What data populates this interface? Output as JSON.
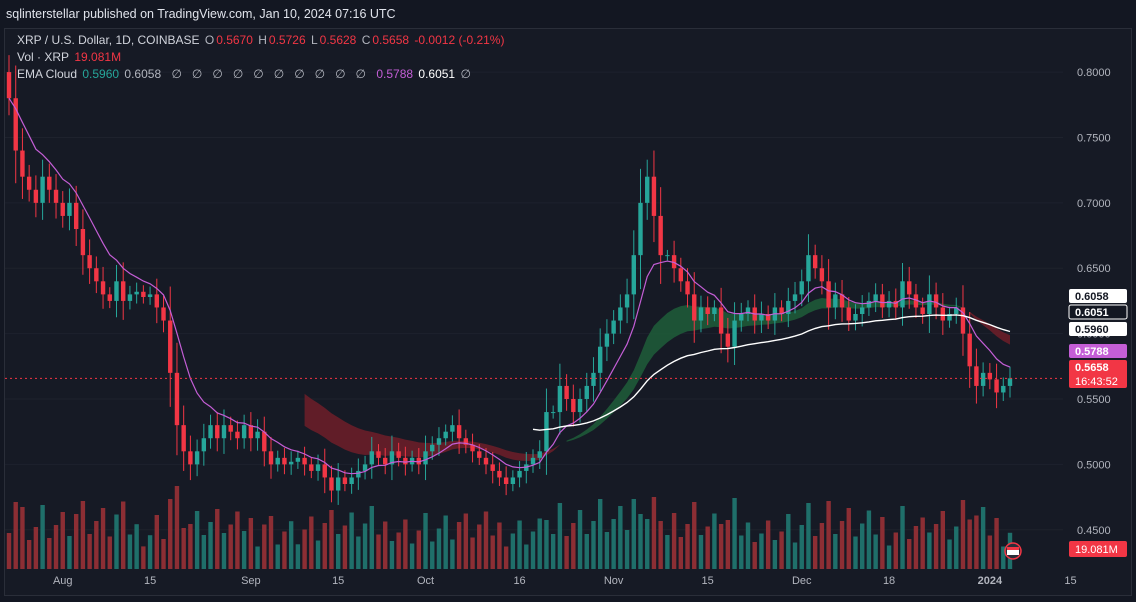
{
  "header": {
    "published": "sqlinterstellar published on TradingView.com, Jan 10, 2024 07:16 UTC"
  },
  "legend": {
    "symbol": "XRP / U.S. Dollar, 1D, COINBASE",
    "o_label": "O",
    "o": "0.5670",
    "h_label": "H",
    "h": "0.5726",
    "l_label": "L",
    "l": "0.5628",
    "c_label": "C",
    "c": "0.5658",
    "change": "-0.0012 (-0.21%)",
    "vol_label": "Vol · XRP",
    "vol": "19.081M",
    "ema_label": "EMA Cloud",
    "ema_a": "0.5960",
    "ema_b": "0.6058",
    "ema_nulls": [
      "∅",
      "∅",
      "∅",
      "∅",
      "∅",
      "∅",
      "∅",
      "∅",
      "∅",
      "∅"
    ],
    "ema_c": "0.5788",
    "ema_d": "0.6051",
    "ema_tail": "∅"
  },
  "colors": {
    "up": "#26a69a",
    "down": "#f23645",
    "vol_up": "#1f6f6a",
    "vol_down": "#8c2e34",
    "ema_purple": "#c45ed6",
    "ema_white": "#ffffff",
    "cloud_bull": "#1e5e3a",
    "cloud_bear": "#6e1f29",
    "bg": "#161a25",
    "grid": "#1e222d"
  },
  "chart_data": {
    "type": "candlestick",
    "symbol": "XRP / U.S. Dollar",
    "interval": "1D",
    "exchange": "COINBASE",
    "ylim": [
      0.42,
      0.81
    ],
    "y_ticks": [
      "0.8000",
      "0.7500",
      "0.7000",
      "0.6500",
      "0.6000",
      "0.5500",
      "0.5000",
      "0.4500"
    ],
    "x_ticks": [
      "Aug",
      "15",
      "Sep",
      "15",
      "Oct",
      "16",
      "Nov",
      "15",
      "Dec",
      "18",
      "2024",
      "15"
    ],
    "price_labels": [
      {
        "value": 0.6058,
        "text": "0.6058",
        "style": "white"
      },
      {
        "value": 0.6051,
        "text": "0.6051",
        "style": "outline"
      },
      {
        "value": 0.596,
        "text": "0.5960",
        "style": "white"
      },
      {
        "value": 0.5788,
        "text": "0.5788",
        "style": "purple"
      },
      {
        "value": 0.5658,
        "text": "0.5658",
        "style": "red",
        "extra": "16:43:52"
      }
    ],
    "volume_label": "19.081M",
    "close_series": [
      0.78,
      0.74,
      0.72,
      0.71,
      0.7,
      0.72,
      0.71,
      0.7,
      0.69,
      0.7,
      0.68,
      0.66,
      0.65,
      0.64,
      0.63,
      0.625,
      0.64,
      0.625,
      0.63,
      0.632,
      0.628,
      0.63,
      0.62,
      0.61,
      0.57,
      0.53,
      0.51,
      0.5,
      0.51,
      0.52,
      0.53,
      0.52,
      0.53,
      0.525,
      0.52,
      0.53,
      0.52,
      0.525,
      0.51,
      0.5,
      0.505,
      0.5,
      0.502,
      0.505,
      0.5,
      0.495,
      0.5,
      0.49,
      0.48,
      0.49,
      0.485,
      0.49,
      0.495,
      0.5,
      0.51,
      0.505,
      0.5,
      0.51,
      0.505,
      0.5,
      0.505,
      0.5,
      0.51,
      0.515,
      0.52,
      0.525,
      0.53,
      0.52,
      0.515,
      0.51,
      0.505,
      0.5,
      0.495,
      0.49,
      0.485,
      0.49,
      0.495,
      0.5,
      0.505,
      0.51,
      0.54,
      0.54,
      0.56,
      0.55,
      0.54,
      0.55,
      0.56,
      0.57,
      0.59,
      0.6,
      0.61,
      0.62,
      0.63,
      0.66,
      0.7,
      0.72,
      0.69,
      0.66,
      0.66,
      0.65,
      0.64,
      0.63,
      0.61,
      0.62,
      0.615,
      0.62,
      0.6,
      0.59,
      0.61,
      0.615,
      0.62,
      0.61,
      0.615,
      0.61,
      0.62,
      0.615,
      0.625,
      0.63,
      0.64,
      0.66,
      0.65,
      0.64,
      0.62,
      0.63,
      0.62,
      0.61,
      0.615,
      0.62,
      0.625,
      0.63,
      0.62,
      0.625,
      0.62,
      0.64,
      0.63,
      0.62,
      0.615,
      0.63,
      0.62,
      0.61,
      0.615,
      0.62,
      0.6,
      0.575,
      0.56,
      0.57,
      0.565,
      0.555,
      0.56,
      0.5658
    ],
    "series": [
      {
        "name": "XRP / U.S. Dollar",
        "kind": "candles"
      },
      {
        "name": "Vol · XRP",
        "kind": "volume"
      },
      {
        "name": "EMA Cloud",
        "kind": "lines+cloud"
      }
    ]
  }
}
